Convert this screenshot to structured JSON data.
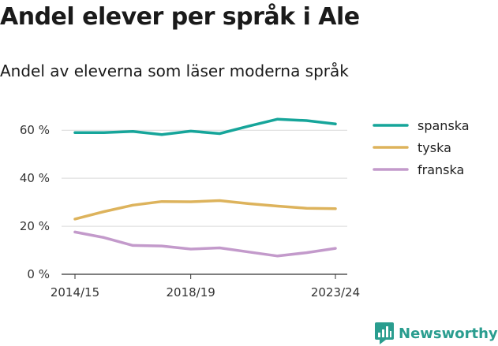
{
  "header": {
    "title": "Andel elever per språk i Ale",
    "subtitle": "Andel av eleverna som läser moderna språk"
  },
  "brand": {
    "name": "Newsworthy",
    "icon": "bar-chart-logo-icon",
    "color": "#2a9d8f"
  },
  "chart_data": {
    "type": "line",
    "x": [
      "2014/15",
      "2015/16",
      "2016/17",
      "2017/18",
      "2018/19",
      "2019/20",
      "2020/21",
      "2021/22",
      "2022/23",
      "2023/24"
    ],
    "x_tick_labels": [
      "2014/15",
      "2018/19",
      "2023/24"
    ],
    "y_ticks": [
      {
        "value": 0,
        "label": "0 %"
      },
      {
        "value": 20,
        "label": "20 %"
      },
      {
        "value": 40,
        "label": "40 %"
      },
      {
        "value": 60,
        "label": "60 %"
      }
    ],
    "ylim": [
      0,
      65
    ],
    "grid": true,
    "legend_position": "top-right",
    "series": [
      {
        "name": "spanska",
        "color": "#16a59a",
        "values": [
          59,
          59,
          59.5,
          58.2,
          59.6,
          58.6,
          61.7,
          64.6,
          64,
          62.6
        ]
      },
      {
        "name": "tyska",
        "color": "#ddb35c",
        "values": [
          23,
          26.1,
          28.8,
          30.3,
          30.2,
          30.7,
          29.4,
          28.4,
          27.5,
          27.3
        ]
      },
      {
        "name": "franska",
        "color": "#c39acb",
        "values": [
          17.6,
          15.3,
          12,
          11.8,
          10.5,
          11,
          9.3,
          7.6,
          9,
          10.8
        ]
      }
    ],
    "xlabel": "",
    "ylabel": ""
  }
}
